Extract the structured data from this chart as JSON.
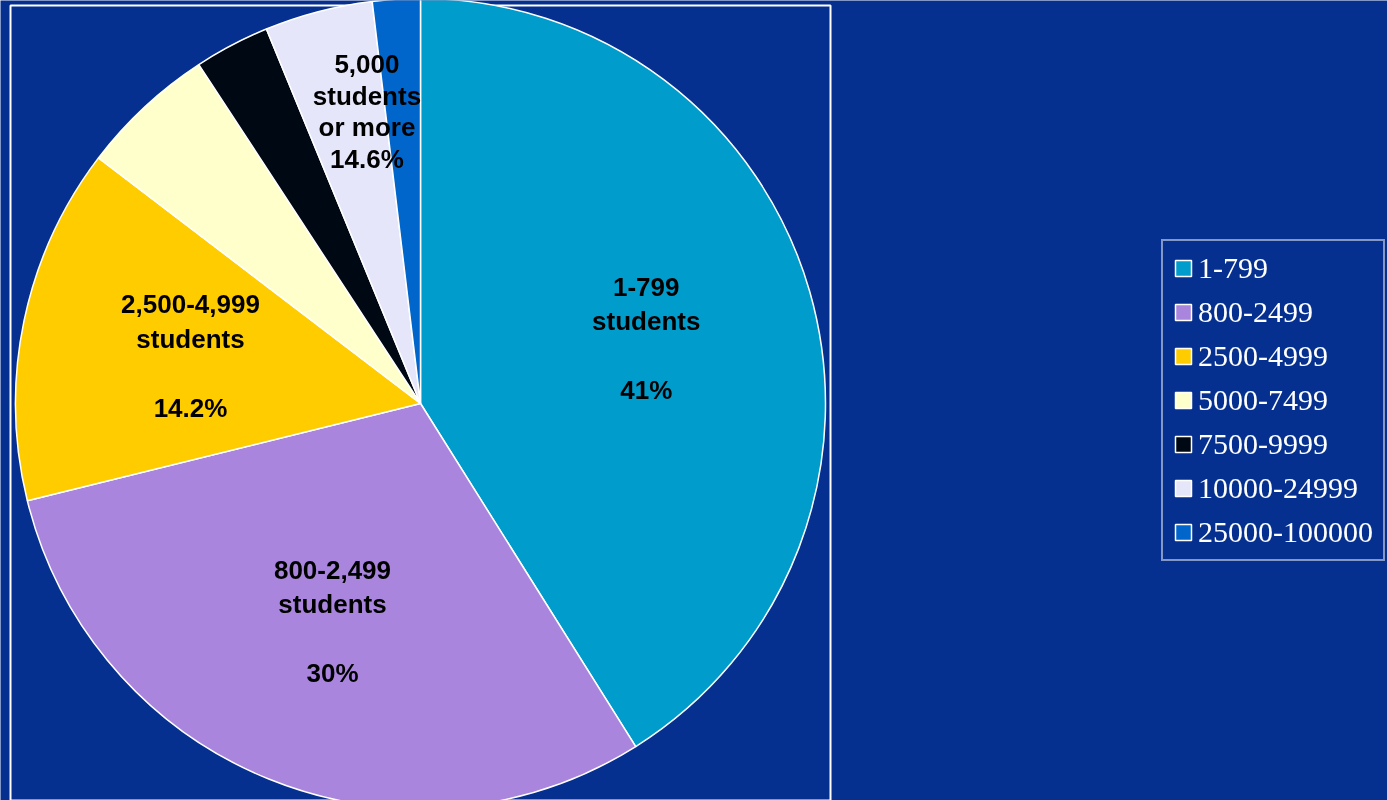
{
  "chart_data": {
    "type": "pie",
    "categories": [
      "1-799",
      "800-2499",
      "2500-4999",
      "5000-7499",
      "7500-9999",
      "10000-24999",
      "25000-100000"
    ],
    "values": [
      41,
      30,
      14.2,
      5.4,
      3.0,
      4.3,
      1.9
    ],
    "colors": [
      "#009ccc",
      "#a985dd",
      "#ffcc00",
      "#ffffcc",
      "#000814",
      "#e6e6fa",
      "#0066cc"
    ],
    "value_labels": [
      "1-799\nstudents\n\n41%",
      "800-2,499\nstudents\n\n30%",
      "2,500-4,999\nstudents\n\n14.2%",
      null,
      null,
      null,
      null
    ],
    "annotations": [
      "5,000\nstudents\nor more\n14.6%"
    ],
    "legend": "right"
  }
}
